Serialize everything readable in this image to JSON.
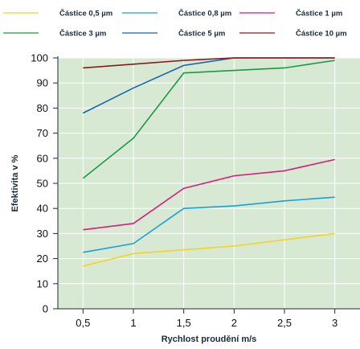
{
  "chart_data": {
    "type": "line",
    "title": "",
    "xlabel": "Rychlost proudění m/s",
    "ylabel": "Efektivita v %",
    "x": [
      0.5,
      1,
      1.5,
      2,
      2.5,
      3
    ],
    "x_tick_labels": [
      "0,5",
      "1",
      "1,5",
      "2",
      "2,5",
      "3"
    ],
    "xlim": [
      0.25,
      3.25
    ],
    "ylim": [
      0,
      100
    ],
    "y_ticks": [
      0,
      10,
      20,
      30,
      40,
      50,
      60,
      70,
      80,
      90,
      100
    ],
    "grid": true,
    "legend_position": "top",
    "series": [
      {
        "name": "Částice 0,5 µm",
        "color": "#f5d224",
        "values": [
          17,
          22,
          23.5,
          25,
          27.5,
          30
        ]
      },
      {
        "name": "Částice 0,8 µm",
        "color": "#1aa0d8",
        "values": [
          22.5,
          26,
          40,
          41,
          43,
          44.5
        ]
      },
      {
        "name": "Částice 1 µm",
        "color": "#d81b7c",
        "values": [
          31.5,
          34,
          48,
          53,
          55,
          59.5
        ]
      },
      {
        "name": "Částice 3 µm",
        "color": "#1a9a45",
        "values": [
          52,
          68,
          94,
          95,
          96,
          99
        ]
      },
      {
        "name": "Částice 5 µm",
        "color": "#1565b5",
        "values": [
          78,
          88,
          97,
          100,
          100,
          100
        ]
      },
      {
        "name": "Částice 10 µm",
        "color": "#8b1a1a",
        "values": [
          96,
          97.5,
          99,
          100,
          100,
          100
        ]
      }
    ]
  }
}
